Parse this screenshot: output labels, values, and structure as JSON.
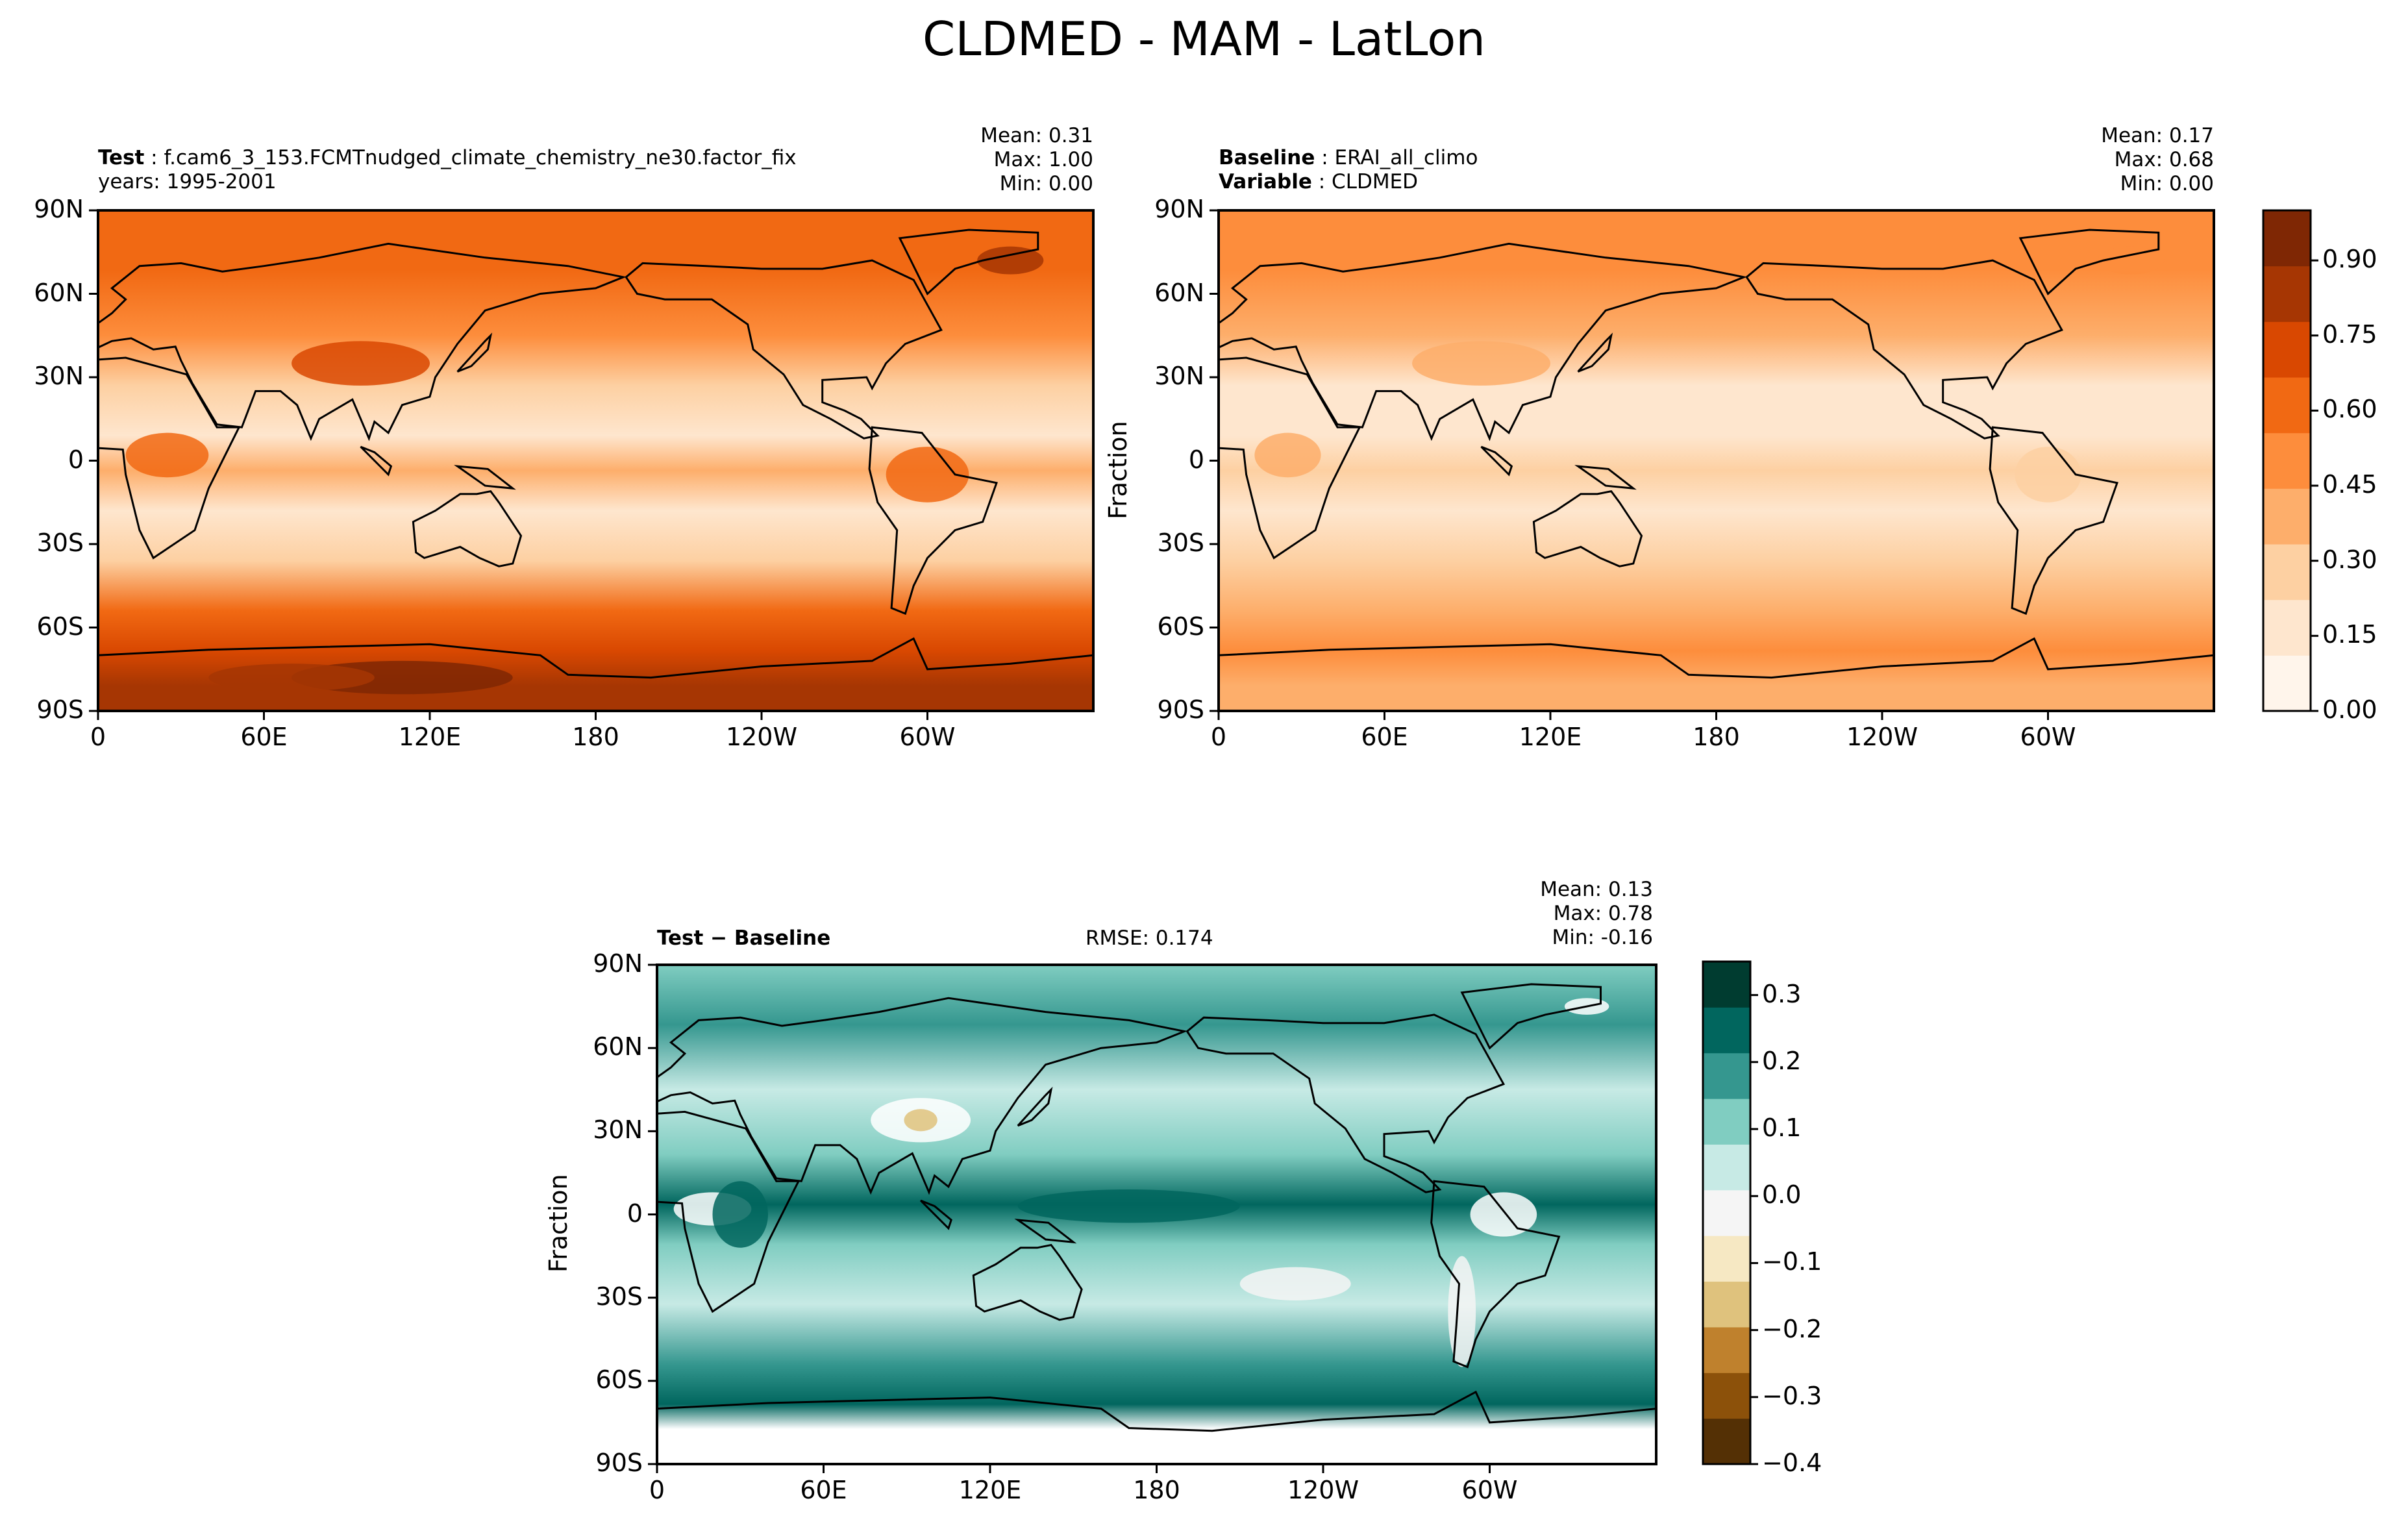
{
  "title": "CLDMED - MAM - LatLon",
  "panels": [
    {
      "key": "test",
      "header": [
        {
          "label": "Test",
          "value": "f.cam6_3_153.FCMTnudged_climate_chemistry_ne30.factor_fix"
        },
        {
          "label": "",
          "value": "years: 1995-2001"
        }
      ],
      "stats": {
        "mean": "Mean:  0.31",
        "max": "Max:  1.00",
        "min": "Min:  0.00"
      },
      "ylabel": ""
    },
    {
      "key": "baseline",
      "header": [
        {
          "label": "Baseline",
          "value": "ERAI_all_climo"
        },
        {
          "label": "Variable",
          "value": "CLDMED"
        }
      ],
      "stats": {
        "mean": "Mean:  0.17",
        "max": "Max:  0.68",
        "min": "Min:  0.00"
      },
      "ylabel": "Fraction"
    },
    {
      "key": "diff",
      "header": [
        {
          "label": "Test − Baseline",
          "value": ""
        }
      ],
      "rmse": "RMSE: 0.174",
      "stats": {
        "mean": "Mean:  0.13",
        "max": "Max:  0.78",
        "min": "Min: -0.16"
      },
      "ylabel": "Fraction"
    }
  ],
  "colorbars": {
    "field": {
      "ticks": [
        "0.00",
        "0.15",
        "0.30",
        "0.45",
        "0.60",
        "0.75",
        "0.90"
      ],
      "range": [
        0,
        1.0
      ],
      "colors": [
        "#fff5eb",
        "#fee6ce",
        "#fdd0a2",
        "#fdae6b",
        "#fd8d3c",
        "#f16913",
        "#d94801",
        "#a63603",
        "#7f2704"
      ]
    },
    "diff": {
      "ticks": [
        "0.3",
        "0.2",
        "0.1",
        "0.0",
        "−0.1",
        "−0.2",
        "−0.3",
        "−0.4"
      ],
      "range": [
        -0.4,
        0.35
      ],
      "colors": [
        "#543005",
        "#8c510a",
        "#bf812d",
        "#dfc27d",
        "#f6e8c3",
        "#f5f5f5",
        "#c7eae5",
        "#80cdc1",
        "#35978f",
        "#01665e",
        "#003c30"
      ]
    }
  },
  "chart_data": [
    {
      "type": "heatmap",
      "title": "",
      "variable": "CLDMED",
      "units": "Fraction",
      "x_ticks": [
        "0",
        "60E",
        "120E",
        "180",
        "120W",
        "60W"
      ],
      "y_ticks": [
        "90N",
        "60N",
        "30N",
        "0",
        "30S",
        "60S",
        "90S"
      ],
      "xlim": [
        0,
        360
      ],
      "ylim": [
        -90,
        90
      ],
      "mean": 0.31,
      "max": 1.0,
      "min": 0.0
    },
    {
      "type": "heatmap",
      "title": "",
      "variable": "CLDMED",
      "units": "Fraction",
      "x_ticks": [
        "0",
        "60E",
        "120E",
        "180",
        "120W",
        "60W"
      ],
      "y_ticks": [
        "90N",
        "60N",
        "30N",
        "0",
        "30S",
        "60S",
        "90S"
      ],
      "xlim": [
        0,
        360
      ],
      "ylim": [
        -90,
        90
      ],
      "mean": 0.17,
      "max": 0.68,
      "min": 0.0
    },
    {
      "type": "heatmap",
      "title": "",
      "variable": "CLDMED difference",
      "units": "Fraction",
      "x_ticks": [
        "0",
        "60E",
        "120E",
        "180",
        "120W",
        "60W"
      ],
      "y_ticks": [
        "90N",
        "60N",
        "30N",
        "0",
        "30S",
        "60S",
        "90S"
      ],
      "xlim": [
        0,
        360
      ],
      "ylim": [
        -90,
        90
      ],
      "mean": 0.13,
      "max": 0.78,
      "min": -0.16,
      "rmse": 0.174
    }
  ]
}
